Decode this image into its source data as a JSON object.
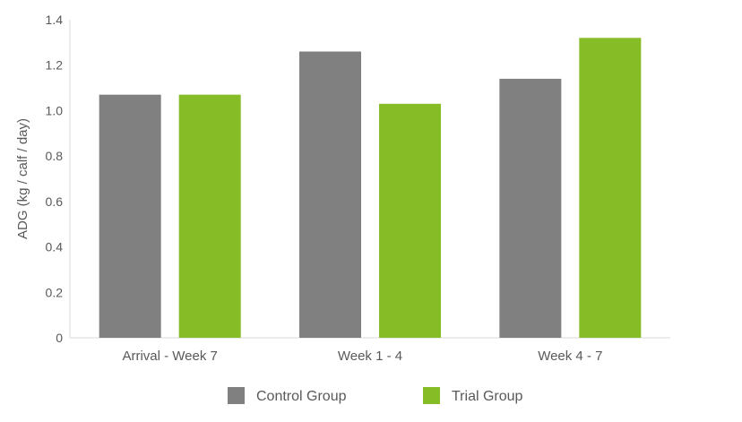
{
  "chart_data": {
    "type": "bar",
    "title": "",
    "xlabel": "",
    "ylabel": "ADG (kg / calf / day)",
    "categories": [
      "Arrival - Week 7",
      "Week 1 - 4",
      "Week 4 - 7"
    ],
    "series": [
      {
        "name": "Control Group",
        "color": "#808080",
        "values": [
          1.07,
          1.26,
          1.14
        ]
      },
      {
        "name": "Trial Group",
        "color": "#86BC25",
        "values": [
          1.07,
          1.03,
          1.32
        ]
      }
    ],
    "ylim": [
      0,
      1.4
    ],
    "yticks": [
      0,
      0.2,
      0.4,
      0.6,
      0.8,
      1.0,
      1.2,
      1.4
    ],
    "ytick_labels": [
      "0",
      "0.2",
      "0.4",
      "0.6",
      "0.8",
      "1.0",
      "1.2",
      "1.4"
    ],
    "grid": false,
    "legend_position": "bottom-center"
  }
}
